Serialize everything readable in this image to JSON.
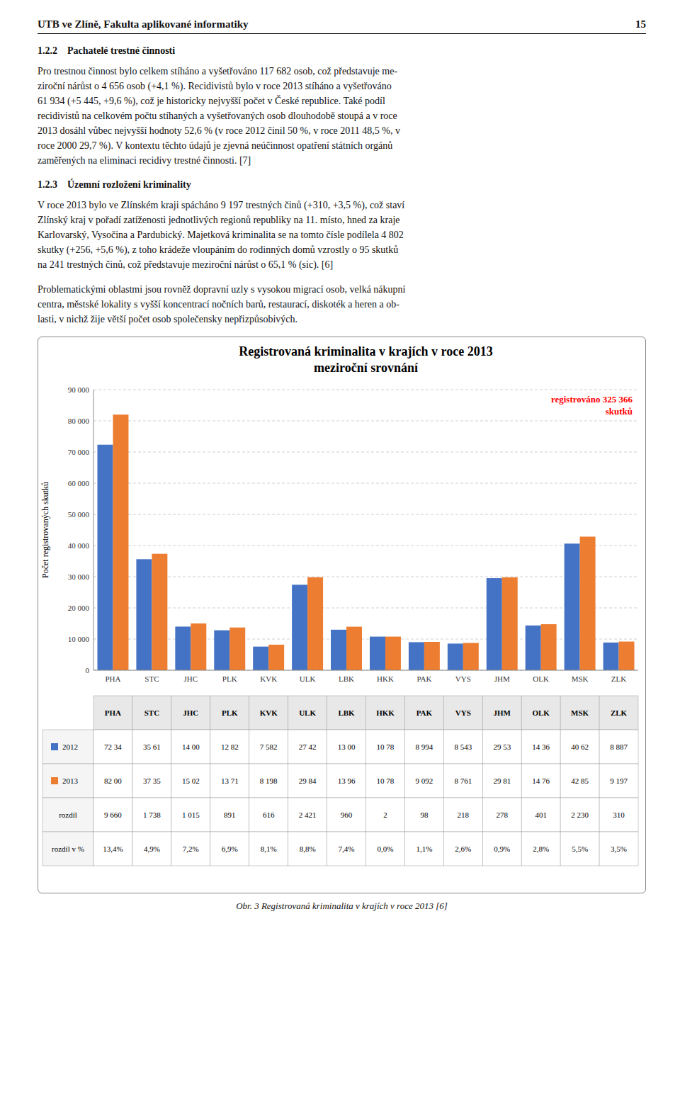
{
  "page_header": "UTB ve Zlíně, Fakulta aplikované informatiky",
  "page_number": "15",
  "sections": [
    {
      "heading": "1.2.2 Pachatelé trestné činnosti",
      "text": "Pro trestnou činnost bylo celkem stíháno a vyšetřováno 117 682 osob, což představuje me-\nziroční nárůst o 4 656 osob (+4,1 %). Recidivistů bylo v roce 2013 stíháno a vyšetřováno\n61 934 (+5 445, +9,6 %), což je historicky nejvyšší počet v České republice. Také podíl\nrecidivistů na celkovém počtu stíhaných a vyšetřovaných osob dlouhodobě stoupá a v roce\n2013 dosáhl vůbec nejvyšší hodnoty 52,6 % (v roce 2012 činil 50 %, v roce 2011 48,5 %, v\nroce 2000 29,7 %). V kontextu těchto údajů je zjevná neúčinnost opatření státních orgánů\nzaměřených na eliminaci recidivy trestné činnosti. [7]"
    },
    {
      "heading": "1.2.3 Územní rozložení kriminality",
      "text": "V roce 2013 bylo ve Zlínském kraji spácháno 9 197 trestných činů (+310, +3,5 %), což staví\nZlínský kraj v pořadí zatíženosti jednotlivých regionů republiky na 11. místo, hned za kraje\nKarlovarský, Vysočina a Pardubický. Majetková kriminalita se na tomto čísle podílela 4 802\nskutky (+256, +5,6 %), z toho krádeže vloupáním do rodinných domů vzrostly o 95 skutků\nna 241 trestných činů, což představuje meziroční nárůst o 65,1 % (sic). [6]"
    },
    {
      "text": "Problematickými oblastmi jsou rovněž dopravní uzly s vysokou migrací osob, velká nákupní\ncentra, městské lokality s vyšší koncentrací nočních barů, restaurací, diskoték a heren a ob-\nlasti, v nichž žije větší počet osob společensky nepřizpůsobivých."
    }
  ],
  "figure_caption": "Obr. 3 Registrovaná kriminalita v krajích v roce 2013 [6]",
  "chart_data": {
    "type": "bar",
    "title": "Registrovaná kriminalita v krajích v roce 2013\nmeziroční srovnání",
    "ylabel": "Počet registrovaných skutků",
    "annotation": {
      "text": "registrováno 325 366\nskutků",
      "color": "#FF0000"
    },
    "categories": [
      "PHA",
      "STC",
      "JHC",
      "PLK",
      "KVK",
      "ULK",
      "LBK",
      "HKK",
      "PAK",
      "VYS",
      "JHM",
      "OLK",
      "MSK",
      "ZLK"
    ],
    "series": [
      {
        "name": "2012",
        "color": "#4472C4",
        "values": [
          72340,
          35610,
          14000,
          12820,
          7582,
          27420,
          13000,
          10780,
          8994,
          8543,
          29530,
          14360,
          40620,
          8887
        ]
      },
      {
        "name": "2013",
        "color": "#ED7D31",
        "values": [
          82000,
          37350,
          15020,
          13710,
          8198,
          29840,
          13960,
          10780,
          9092,
          8761,
          29810,
          14760,
          42850,
          9197
        ]
      }
    ],
    "ylim": [
      0,
      90000
    ],
    "yticks": [
      0,
      {
        "value": 10000,
        "label": "10 000"
      },
      {
        "value": 20000,
        "label": "20 000"
      },
      {
        "value": 30000,
        "label": "30 000"
      },
      {
        "value": 40000,
        "label": "40 000"
      },
      {
        "value": 50000,
        "label": "50 000"
      },
      {
        "value": 60000,
        "label": "60 000"
      },
      {
        "value": 70000,
        "label": "70 000"
      },
      {
        "value": 80000,
        "label": "80 000"
      },
      {
        "value": 90000,
        "label": "90 000"
      }
    ],
    "grid": true,
    "table": {
      "rows": [
        {
          "cells": [
            "72 34",
            "35 61",
            "14 00",
            "12 82",
            "7 582",
            "27 42",
            "13 00",
            "10 78",
            "8 994",
            "8 543",
            "29 53",
            "14 36",
            "40 62",
            "8 887"
          ]
        },
        {
          "cells": [
            "82 00",
            "37 35",
            "15 02",
            "13 71",
            "8 198",
            "29 84",
            "13 96",
            "10 78",
            "9 092",
            "8 761",
            "29 81",
            "14 76",
            "42 85",
            "9 197"
          ]
        },
        {
          "label": "rozdíl",
          "cells": [
            "9 660",
            "1 738",
            "1 015",
            "891",
            "616",
            "2 421",
            "960",
            "2",
            "98",
            "218",
            "278",
            "401",
            "2 230",
            "310"
          ]
        },
        {
          "label": "rozdíl v %",
          "cells": [
            "13,4%",
            "4,9%",
            "7,2%",
            "6,9%",
            "8,1%",
            "8,8%",
            "7,4%",
            "0,0%",
            "1,1%",
            "2,6%",
            "0,9%",
            "2,8%",
            "5,5%",
            "3,5%"
          ]
        }
      ]
    }
  }
}
